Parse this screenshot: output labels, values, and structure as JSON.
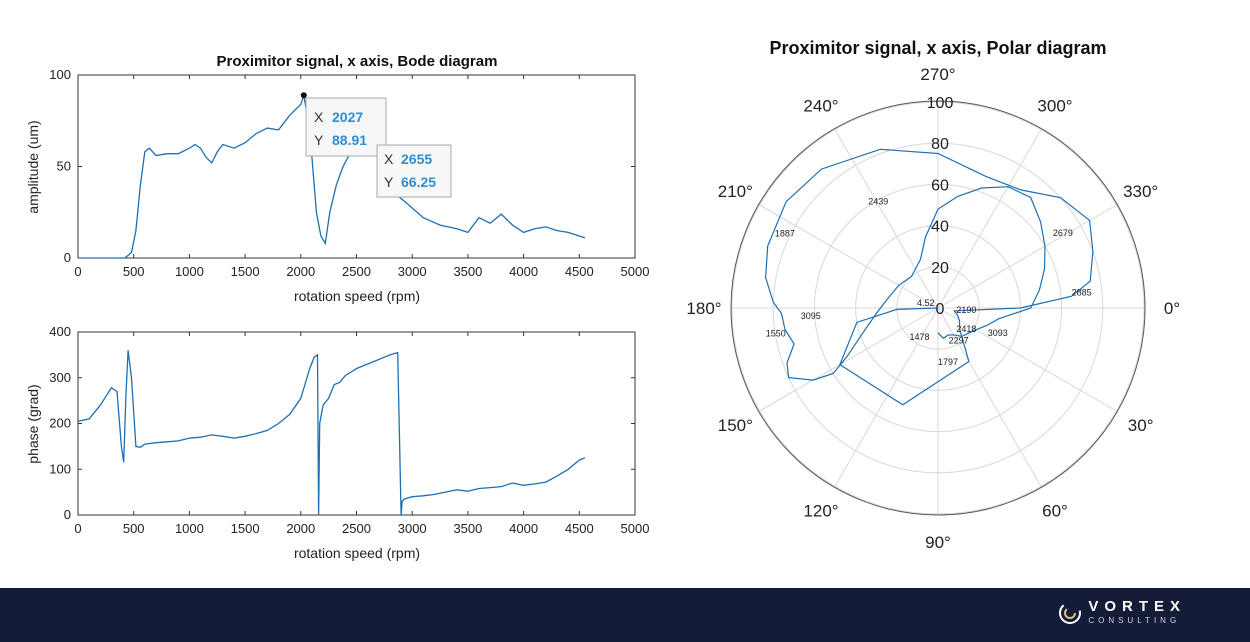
{
  "chart_data": [
    {
      "type": "line",
      "title": "Proximitor signal, x axis, Bode diagram",
      "xlabel": "rotation speed (rpm)",
      "ylabel": "amplitude (um)",
      "xlim": [
        0,
        5000
      ],
      "ylim": [
        0,
        100
      ],
      "xticks": [
        "0",
        "500",
        "1000",
        "1500",
        "2000",
        "2500",
        "3000",
        "3500",
        "4000",
        "4500",
        "5000"
      ],
      "yticks": [
        "0",
        "50",
        "100"
      ],
      "grid": false,
      "series": [
        {
          "x": [
            0,
            300,
            420,
            480,
            520,
            560,
            600,
            640,
            700,
            800,
            900,
            1000,
            1050,
            1100,
            1150,
            1200,
            1250,
            1300,
            1400,
            1500,
            1600,
            1700,
            1800,
            1900,
            2000,
            2027,
            2080,
            2140,
            2180,
            2220,
            2260,
            2320,
            2380,
            2450,
            2550,
            2655,
            2750,
            2850,
            2950,
            3100,
            3250,
            3400,
            3500,
            3600,
            3700,
            3800,
            3900,
            4000,
            4100,
            4200,
            4300,
            4400,
            4500,
            4550
          ],
          "y": [
            0,
            0,
            0,
            3,
            15,
            40,
            58,
            60,
            56,
            57,
            57,
            60,
            62,
            60,
            55,
            52,
            58,
            62,
            60,
            63,
            68,
            71,
            70,
            78,
            84,
            88.91,
            70,
            25,
            12,
            8,
            25,
            40,
            50,
            58,
            62,
            66.25,
            45,
            35,
            30,
            22,
            18,
            16,
            14,
            22,
            19,
            24,
            18,
            14,
            16,
            17,
            15,
            14,
            12,
            11
          ]
        }
      ],
      "data_tips": [
        {
          "x_label": "X",
          "x_value": "2027",
          "y_label": "Y",
          "y_value": "88.91"
        },
        {
          "x_label": "X",
          "x_value": "2655",
          "y_label": "Y",
          "y_value": "66.25"
        }
      ]
    },
    {
      "type": "line",
      "title": "",
      "xlabel": "rotation speed (rpm)",
      "ylabel": "phase (grad)",
      "xlim": [
        0,
        5000
      ],
      "ylim": [
        0,
        400
      ],
      "xticks": [
        "0",
        "500",
        "1000",
        "1500",
        "2000",
        "2500",
        "3000",
        "3500",
        "4000",
        "4500",
        "5000"
      ],
      "yticks": [
        "0",
        "100",
        "200",
        "300",
        "400"
      ],
      "grid": false,
      "series": [
        {
          "x": [
            0,
            100,
            200,
            300,
            350,
            390,
            410,
            430,
            450,
            480,
            520,
            560,
            600,
            700,
            800,
            900,
            1000,
            1100,
            1200,
            1300,
            1400,
            1500,
            1600,
            1700,
            1800,
            1900,
            2000,
            2080,
            2120,
            2150,
            2160,
            2170,
            2200,
            2250,
            2300,
            2350,
            2400,
            2500,
            2600,
            2700,
            2800,
            2870,
            2900,
            2910,
            2930,
            3000,
            3100,
            3200,
            3300,
            3400,
            3500,
            3600,
            3700,
            3800,
            3900,
            4000,
            4100,
            4200,
            4300,
            4400,
            4500,
            4550
          ],
          "y": [
            205,
            210,
            240,
            278,
            270,
            150,
            115,
            260,
            360,
            300,
            150,
            148,
            155,
            158,
            160,
            162,
            168,
            170,
            175,
            172,
            168,
            172,
            178,
            185,
            200,
            220,
            255,
            320,
            345,
            350,
            0,
            200,
            240,
            255,
            285,
            290,
            305,
            320,
            330,
            340,
            350,
            355,
            0,
            30,
            35,
            40,
            42,
            45,
            50,
            55,
            52,
            58,
            60,
            62,
            70,
            65,
            68,
            72,
            85,
            100,
            120,
            125
          ]
        }
      ]
    },
    {
      "type": "polar",
      "title": "Proximitor signal, x axis, Polar diagram",
      "r_ticks": [
        "0",
        "20",
        "40",
        "60",
        "80",
        "100"
      ],
      "rlim": [
        0,
        100
      ],
      "angle_ticks": [
        "0°",
        "30°",
        "60°",
        "90°",
        "120°",
        "150°",
        "180°",
        "210°",
        "240°",
        "270°",
        "300°",
        "330°"
      ],
      "theta_direction": "clockwise",
      "series": [
        {
          "theta_deg": [
            180,
            178,
            170,
            150,
            110,
            60,
            45,
            30,
            20,
            10,
            0,
            355,
            350,
            340,
            330,
            318,
            305,
            290,
            270,
            250,
            230,
            215,
            200,
            190,
            182,
            178,
            172,
            166,
            160,
            155,
            150,
            148,
            152,
            160,
            175,
            190,
            210,
            230,
            250,
            260,
            270,
            280,
            290,
            300,
            310,
            320,
            330,
            340,
            350,
            0,
            10,
            20,
            35,
            50,
            60,
            70,
            80,
            90
          ],
          "r": [
            0,
            20,
            40,
            55,
            50,
            30,
            15,
            12,
            10,
            8,
            40,
            65,
            75,
            80,
            85,
            80,
            70,
            68,
            75,
            82,
            88,
            90,
            88,
            85,
            80,
            76,
            75,
            72,
            78,
            80,
            70,
            60,
            50,
            40,
            30,
            25,
            22,
            20,
            25,
            35,
            48,
            55,
            62,
            68,
            70,
            65,
            60,
            55,
            50,
            45,
            30,
            25,
            20,
            18,
            15,
            14,
            15,
            12
          ]
        }
      ],
      "annotations": [
        "2679",
        "2439",
        "1887",
        "2885",
        "4.52",
        "2190",
        "1550",
        "3095",
        "1478",
        "2418",
        "3093",
        "2297",
        "1797"
      ]
    }
  ],
  "footer": {
    "brand_name": "VORTEX",
    "brand_sub": "CONSULTING"
  },
  "colors": {
    "series": "#1f6fb2",
    "tip_value": "#2a8fd6",
    "footer_bg": "#151c38"
  }
}
